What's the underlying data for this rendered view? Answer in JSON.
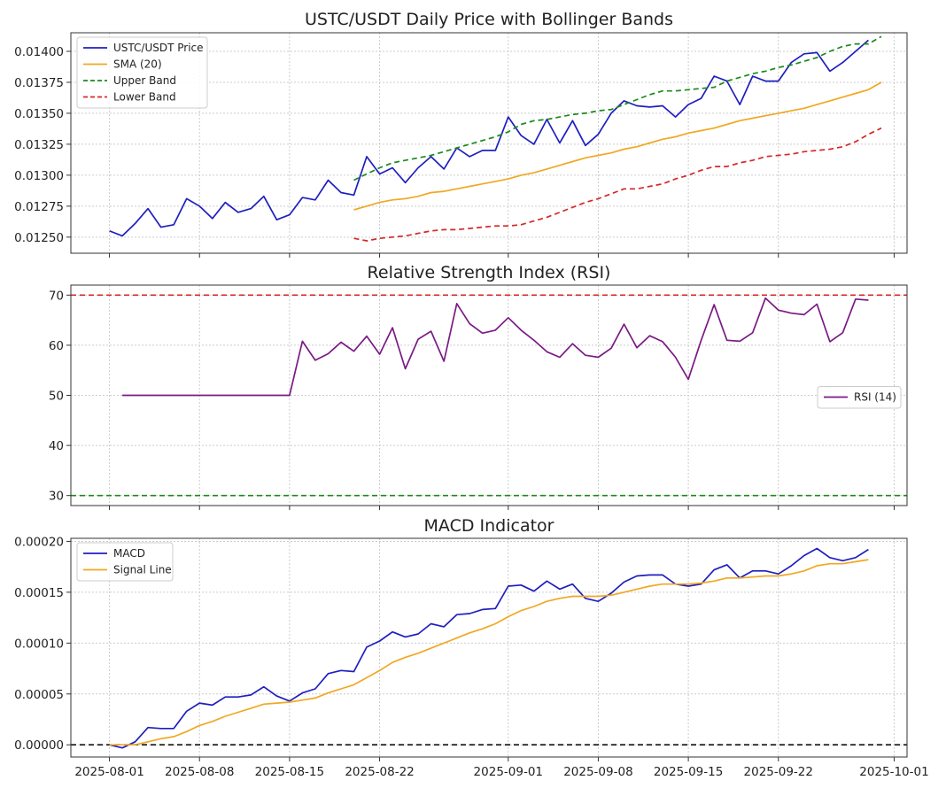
{
  "colors": {
    "price": "#1f1fbf",
    "sma": "#f0a823",
    "upper": "#1a8a1a",
    "lower": "#d62728",
    "rsi": "#7b1a85",
    "macd": "#1f1fbf",
    "signal": "#f0a823",
    "rsi_over": "#d62728",
    "rsi_under": "#1a8a1a",
    "zero": "#111111"
  },
  "chart_data": [
    {
      "type": "line",
      "title": "USTC/USDT Daily Price with Bollinger Bands",
      "x_start": "2025-08-01",
      "xlim": [
        "2025-07-29",
        "2025-10-02"
      ],
      "ylim": [
        0.01237,
        0.01415
      ],
      "yticks": [
        "0.01250",
        "0.01275",
        "0.01300",
        "0.01325",
        "0.01350",
        "0.01375",
        "0.01400"
      ],
      "grid": true,
      "legend": "top-left",
      "series": [
        {
          "name": "USTC/USDT Price",
          "key": "price",
          "x_offset": 0,
          "values": [
            0.01255,
            0.01251,
            0.01261,
            0.01273,
            0.01258,
            0.0126,
            0.01281,
            0.01275,
            0.01265,
            0.01278,
            0.0127,
            0.01273,
            0.01283,
            0.01264,
            0.01268,
            0.01282,
            0.0128,
            0.01296,
            0.01286,
            0.01284,
            0.01315,
            0.01301,
            0.01306,
            0.01294,
            0.01306,
            0.01315,
            0.01305,
            0.01322,
            0.01315,
            0.0132,
            0.0132,
            0.01347,
            0.01332,
            0.01325,
            0.01345,
            0.01326,
            0.01344,
            0.01324,
            0.01333,
            0.0135,
            0.0136,
            0.01356,
            0.01355,
            0.01356,
            0.01347,
            0.01357,
            0.01362,
            0.0138,
            0.01376,
            0.01357,
            0.0138,
            0.01376,
            0.01376,
            0.01391,
            0.01398,
            0.01399,
            0.01384,
            0.01391,
            0.014,
            0.01409
          ]
        },
        {
          "name": "SMA (20)",
          "key": "sma",
          "x_offset": 19,
          "values": [
            0.01272,
            0.01275,
            0.01278,
            0.0128,
            0.01281,
            0.01283,
            0.01286,
            0.01287,
            0.01289,
            0.01291,
            0.01293,
            0.01295,
            0.01297,
            0.013,
            0.01302,
            0.01305,
            0.01308,
            0.01311,
            0.01314,
            0.01316,
            0.01318,
            0.01321,
            0.01323,
            0.01326,
            0.01329,
            0.01331,
            0.01334,
            0.01336,
            0.01338,
            0.01341,
            0.01344,
            0.01346,
            0.01348,
            0.0135,
            0.01352,
            0.01354,
            0.01357,
            0.0136,
            0.01363,
            0.01366,
            0.01369,
            0.01375
          ]
        },
        {
          "name": "Upper Band",
          "key": "upper",
          "x_offset": 19,
          "dashed": true,
          "values": [
            0.01296,
            0.01301,
            0.01306,
            0.0131,
            0.01312,
            0.01314,
            0.01316,
            0.01319,
            0.01322,
            0.01325,
            0.01328,
            0.01331,
            0.01335,
            0.01341,
            0.01344,
            0.01345,
            0.01347,
            0.01349,
            0.0135,
            0.01352,
            0.01353,
            0.01357,
            0.01361,
            0.01365,
            0.01368,
            0.01368,
            0.01369,
            0.0137,
            0.01371,
            0.01376,
            0.01379,
            0.01382,
            0.01384,
            0.01387,
            0.01389,
            0.01392,
            0.01395,
            0.014,
            0.01404,
            0.01406,
            0.01406,
            0.01412
          ]
        },
        {
          "name": "Lower Band",
          "key": "lower",
          "x_offset": 19,
          "dashed": true,
          "values": [
            0.01249,
            0.01247,
            0.01249,
            0.0125,
            0.01251,
            0.01253,
            0.01255,
            0.01256,
            0.01256,
            0.01257,
            0.01258,
            0.01259,
            0.01259,
            0.0126,
            0.01263,
            0.01266,
            0.0127,
            0.01274,
            0.01278,
            0.01281,
            0.01285,
            0.01289,
            0.01289,
            0.01291,
            0.01293,
            0.01297,
            0.013,
            0.01304,
            0.01307,
            0.01307,
            0.0131,
            0.01312,
            0.01315,
            0.01316,
            0.01317,
            0.01319,
            0.0132,
            0.01321,
            0.01323,
            0.01327,
            0.01333,
            0.01338
          ]
        }
      ]
    },
    {
      "type": "line",
      "title": "Relative Strength Index (RSI)",
      "xlim": [
        "2025-07-29",
        "2025-10-02"
      ],
      "ylim": [
        28,
        72
      ],
      "yticks": [
        "30",
        "40",
        "50",
        "60",
        "70"
      ],
      "grid": true,
      "legend": "center-right",
      "reference_lines": [
        {
          "y": 70,
          "key": "rsi_over"
        },
        {
          "y": 30,
          "key": "rsi_under"
        }
      ],
      "series": [
        {
          "name": "RSI (14)",
          "key": "rsi",
          "x_offset": 1,
          "values": [
            50,
            50,
            50,
            50,
            50,
            50,
            50,
            50,
            50,
            50,
            50,
            50,
            50,
            50,
            60.8,
            57,
            58.3,
            60.6,
            58.8,
            61.8,
            58.2,
            63.5,
            55.3,
            61.2,
            62.8,
            56.8,
            68.3,
            64.3,
            62.4,
            63,
            65.5,
            63,
            61,
            58.7,
            57.6,
            60.3,
            58,
            57.6,
            59.4,
            64.2,
            59.5,
            61.9,
            60.7,
            57.6,
            53.2,
            61,
            68.1,
            61,
            60.8,
            62.5,
            69.4,
            67,
            66.4,
            66.1,
            68.2,
            60.7,
            62.5,
            69.2,
            69
          ]
        }
      ]
    },
    {
      "type": "line",
      "title": "MACD Indicator",
      "x_start": "2025-08-01",
      "xlim": [
        "2025-07-29",
        "2025-10-02"
      ],
      "ylim": [
        -1.2e-05,
        0.000203
      ],
      "yticks": [
        "0.00000",
        "0.00005",
        "0.00010",
        "0.00015",
        "0.00020"
      ],
      "xticks": [
        "2025-08-01",
        "2025-08-08",
        "2025-08-15",
        "2025-08-22",
        "2025-09-01",
        "2025-09-08",
        "2025-09-15",
        "2025-09-22",
        "2025-10-01"
      ],
      "grid": true,
      "legend": "top-left",
      "reference_lines": [
        {
          "y": 0,
          "key": "zero"
        }
      ],
      "series": [
        {
          "name": "MACD",
          "key": "macd",
          "x_offset": 0,
          "values": [
            0.0,
            -3e-06,
            3e-06,
            1.7e-05,
            1.6e-05,
            1.6e-05,
            3.3e-05,
            4.1e-05,
            3.9e-05,
            4.7e-05,
            4.7e-05,
            4.9e-05,
            5.7e-05,
            4.8e-05,
            4.3e-05,
            5.1e-05,
            5.5e-05,
            7e-05,
            7.3e-05,
            7.2e-05,
            9.6e-05,
            0.000102,
            0.000111,
            0.000106,
            0.000109,
            0.000119,
            0.000116,
            0.000128,
            0.000129,
            0.000133,
            0.000134,
            0.000156,
            0.000157,
            0.000151,
            0.000161,
            0.000153,
            0.000158,
            0.000144,
            0.000141,
            0.000149,
            0.00016,
            0.000166,
            0.000167,
            0.000167,
            0.000158,
            0.000156,
            0.000158,
            0.000172,
            0.000177,
            0.000164,
            0.000171,
            0.000171,
            0.000168,
            0.000176,
            0.000186,
            0.000193,
            0.000184,
            0.000181,
            0.000184,
            0.000192
          ]
        },
        {
          "name": "Signal Line",
          "key": "signal",
          "x_offset": 0,
          "values": [
            0.0,
            0.0,
            0.0,
            3e-06,
            6e-06,
            8e-06,
            1.3e-05,
            1.9e-05,
            2.3e-05,
            2.8e-05,
            3.2e-05,
            3.6e-05,
            4e-05,
            4.1e-05,
            4.2e-05,
            4.4e-05,
            4.6e-05,
            5.1e-05,
            5.5e-05,
            5.9e-05,
            6.6e-05,
            7.3e-05,
            8.1e-05,
            8.6e-05,
            9e-05,
            9.5e-05,
            0.0001,
            0.000105,
            0.00011,
            0.000114,
            0.000119,
            0.000126,
            0.000132,
            0.000136,
            0.000141,
            0.000144,
            0.000146,
            0.000146,
            0.000146,
            0.000147,
            0.00015,
            0.000153,
            0.000156,
            0.000158,
            0.000158,
            0.000158,
            0.000159,
            0.000161,
            0.000164,
            0.000164,
            0.000165,
            0.000166,
            0.000166,
            0.000168,
            0.000171,
            0.000176,
            0.000178,
            0.000178,
            0.00018,
            0.000182
          ]
        }
      ]
    }
  ]
}
